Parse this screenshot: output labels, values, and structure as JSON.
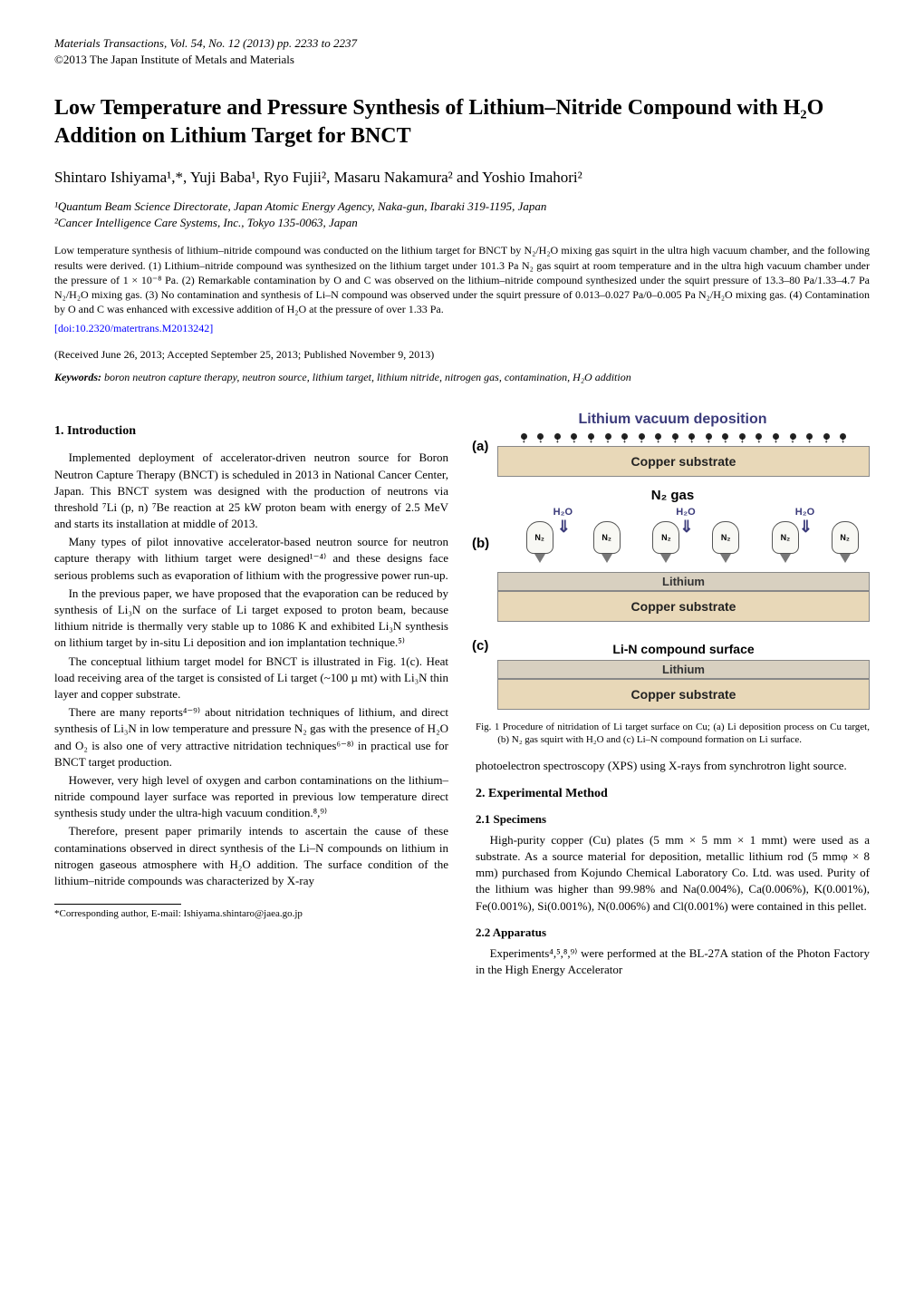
{
  "journal_header": "Materials Transactions, Vol. 54, No. 12 (2013) pp. 2233 to 2237",
  "copyright": "©2013 The Japan Institute of Metals and Materials",
  "title": "Low Temperature and Pressure Synthesis of Lithium–Nitride Compound with H₂O Addition on Lithium Target for BNCT",
  "authors": "Shintaro Ishiyama¹,*, Yuji Baba¹, Ryo Fujii², Masaru Nakamura² and Yoshio Imahori²",
  "affiliations": [
    "¹Quantum Beam Science Directorate, Japan Atomic Energy Agency, Naka-gun, Ibaraki 319-1195, Japan",
    "²Cancer Intelligence Care Systems, Inc., Tokyo 135-0063, Japan"
  ],
  "abstract": "Low temperature synthesis of lithium–nitride compound was conducted on the lithium target for BNCT by N₂/H₂O mixing gas squirt in the ultra high vacuum chamber, and the following results were derived. (1) Lithium–nitride compound was synthesized on the lithium target under 101.3 Pa N₂ gas squirt at room temperature and in the ultra high vacuum chamber under the pressure of 1 × 10⁻⁸ Pa. (2) Remarkable contamination by O and C was observed on the lithium–nitride compound synthesized under the squirt pressure of 13.3–80 Pa/1.33–4.7 Pa N₂/H₂O mixing gas. (3) No contamination and synthesis of Li–N compound was observed under the squirt pressure of 0.013–0.027 Pa/0–0.005 Pa N₂/H₂O mixing gas. (4) Contamination by O and C was enhanced with excessive addition of H₂O at the pressure of over 1.33 Pa.",
  "doi": "[doi:10.2320/matertrans.M2013242]",
  "received": "(Received June 26, 2013; Accepted September 25, 2013; Published November 9, 2013)",
  "keywords_label": "Keywords:",
  "keywords": "boron neutron capture therapy, neutron source, lithium target, lithium nitride, nitrogen gas, contamination, H₂O addition",
  "sections": {
    "s1_title": "1.  Introduction",
    "s1_p1": "Implemented deployment of accelerator-driven neutron source for Boron Neutron Capture Therapy (BNCT) is scheduled in 2013 in National Cancer Center, Japan. This BNCT system was designed with the production of neutrons via threshold ⁷Li (p, n) ⁷Be reaction at 25 kW proton beam with energy of 2.5 MeV and starts its installation at middle of 2013.",
    "s1_p2": "Many types of pilot innovative accelerator-based neutron source for neutron capture therapy with lithium target were designed¹⁻⁴⁾ and these designs face serious problems such as evaporation of lithium with the progressive power run-up.",
    "s1_p3": "In the previous paper, we have proposed that the evaporation can be reduced by synthesis of Li₃N on the surface of Li target exposed to proton beam, because lithium nitride is thermally very stable up to 1086 K and exhibited Li₃N synthesis on lithium target by in-situ Li deposition and ion implantation technique.⁵⁾",
    "s1_p4": "The conceptual lithium target model for BNCT is illustrated in Fig. 1(c). Heat load receiving area of the target is consisted of Li target (~100 µ mt) with Li₃N thin layer and copper substrate.",
    "s1_p5": "There are many reports⁴⁻⁹⁾ about nitridation techniques of lithium, and direct synthesis of Li₃N in low temperature and pressure N₂ gas with the presence of H₂O and O₂ is also one of very attractive nitridation techniques⁶⁻⁸⁾ in practical use for BNCT target production.",
    "s1_p6": "However, very high level of oxygen and carbon contaminations on the lithium–nitride compound layer surface was reported in previous low temperature direct synthesis study under the ultra-high vacuum condition.⁸,⁹⁾",
    "s1_p7": "Therefore, present paper primarily intends to ascertain the cause of these contaminations observed in direct synthesis of the Li–N compounds on lithium in nitrogen gaseous atmosphere with H₂O addition. The surface condition of the lithium–nitride compounds was characterized by X-ray",
    "s1_p7_cont": "photoelectron spectroscopy (XPS) using X-rays from synchrotron light source.",
    "s2_title": "2.  Experimental Method",
    "s21_title": "2.1  Specimens",
    "s21_p1": "High-purity copper (Cu) plates (5 mm × 5 mm × 1 mmt) were used as a substrate. As a source material for deposition, metallic lithium rod (5 mmφ × 8 mm) purchased from Kojundo Chemical Laboratory Co. Ltd. was used. Purity of the lithium was higher than 99.98% and Na(0.004%), Ca(0.006%), K(0.001%), Fe(0.001%), Si(0.001%), N(0.006%) and Cl(0.001%) were contained in this pellet.",
    "s22_title": "2.2  Apparatus",
    "s22_p1": "Experiments⁴,⁵,⁸,⁹⁾ were performed at the BL-27A station of the Photon Factory in the High Energy Accelerator"
  },
  "footnote": "*Corresponding author, E-mail: Ishiyama.shintaro@jaea.go.jp",
  "figure": {
    "title": "Lithium vacuum deposition",
    "panel_a_label": "(a)",
    "panel_b_label": "(b)",
    "panel_c_label": "(c)",
    "copper_label": "Copper substrate",
    "lithium_label": "Lithium",
    "n2_gas_label": "N₂ gas",
    "nozzle_label": "N₂",
    "h2o_label": "H₂O",
    "lin_surface_label": "Li-N compound surface",
    "caption": "Fig. 1  Procedure of nitridation of Li target surface on Cu; (a) Li deposition process on Cu target, (b) N₂ gas squirt with H₂O and (c) Li–N compound formation on Li surface.",
    "colors": {
      "title_color": "#3a3a7a",
      "copper_bg": "#e8d8b8",
      "lithium_bg": "#d8d0c0",
      "h2o_color": "#3a3a7a",
      "border_color": "#888888"
    },
    "dots_count": 20,
    "nozzle_count": 6,
    "nozzle_positions_pct": [
      6,
      24,
      40,
      56,
      72,
      88
    ],
    "h2o_positions_pct": [
      15,
      48,
      80
    ]
  }
}
